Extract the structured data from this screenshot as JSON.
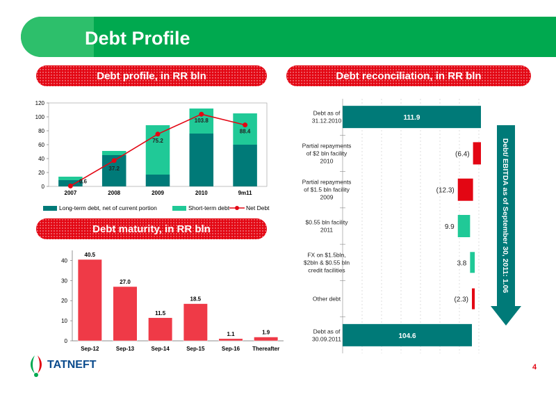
{
  "title": "Debt Profile",
  "page_number": "4",
  "logo_text": "TATNEFT",
  "sections": {
    "profile": "Debt profile, in RR bln",
    "reconciliation": "Debt reconciliation, in RR bln",
    "maturity": "Debt maturity, in RR bln"
  },
  "colors": {
    "green": "#00a94f",
    "teal": "#007a78",
    "mint": "#20c997",
    "red": "#e30613",
    "bar_red": "#ef3a47"
  },
  "chart_data": [
    {
      "type": "bar",
      "stacked": true,
      "title": "Debt profile, in RR bln",
      "categories": [
        "2007",
        "2008",
        "2009",
        "2010",
        "9m11"
      ],
      "series": [
        {
          "name": "Long-term debt, net of current portion",
          "type": "bar",
          "values": [
            9,
            45,
            17,
            76,
            60
          ],
          "color": "#007a78"
        },
        {
          "name": "Short-term debt",
          "type": "bar",
          "values": [
            5,
            6,
            71,
            36,
            45
          ],
          "color": "#20c997"
        },
        {
          "name": "Net Debt",
          "type": "line",
          "values": [
            0.6,
            37.2,
            75.2,
            103.8,
            88.4
          ],
          "labels": [
            "0.6",
            "37.2",
            "75.2",
            "103.8",
            "88.4"
          ],
          "color": "#e30613"
        }
      ],
      "ylim": [
        0,
        120
      ],
      "yticks": [
        0,
        20,
        40,
        60,
        80,
        100,
        120
      ],
      "legend": "bottom"
    },
    {
      "type": "bar",
      "title": "Debt maturity, in RR bln",
      "categories": [
        "Sep-12",
        "Sep-13",
        "Sep-14",
        "Sep-15",
        "Sep-16",
        "Thereafter"
      ],
      "values": [
        40.5,
        27.0,
        11.5,
        18.5,
        1.1,
        1.9
      ],
      "labels": [
        "40.5",
        "27.0",
        "11.5",
        "18.5",
        "1.1",
        "1.9"
      ],
      "ylim": [
        0,
        45
      ],
      "yticks": [
        0,
        10,
        20,
        30,
        40
      ],
      "color": "#ef3a47"
    },
    {
      "type": "bar",
      "orientation": "horizontal",
      "waterfall": true,
      "title": "Debt reconciliation, in RR bln",
      "categories": [
        [
          "Debt as of",
          "31.12.2010"
        ],
        [
          "Partial repayments",
          "of $2 bln facility",
          "2010"
        ],
        [
          "Partial repayments",
          "of $1.5 bln facility",
          "2009"
        ],
        [
          "$0.55 bln facility",
          "2011"
        ],
        [
          "FX on $1.5bln,",
          "$2bln & $0.55 bln",
          "credit facilities"
        ],
        [
          "Other debt"
        ],
        [
          "Debt as of",
          "30.09.2011"
        ]
      ],
      "values": [
        111.9,
        -6.4,
        -12.3,
        9.9,
        3.8,
        -2.3,
        104.6
      ],
      "labels": [
        "111.9",
        "(6.4)",
        "(12.3)",
        "9.9",
        "3.8",
        "(2.3)",
        "104.6"
      ],
      "kinds": [
        "total",
        "decrease",
        "decrease",
        "increase",
        "increase",
        "decrease",
        "total"
      ],
      "xlim": [
        0,
        115
      ]
    }
  ],
  "side_note": "Debt/ EBITDA as of September 30, 2011: 1.06"
}
